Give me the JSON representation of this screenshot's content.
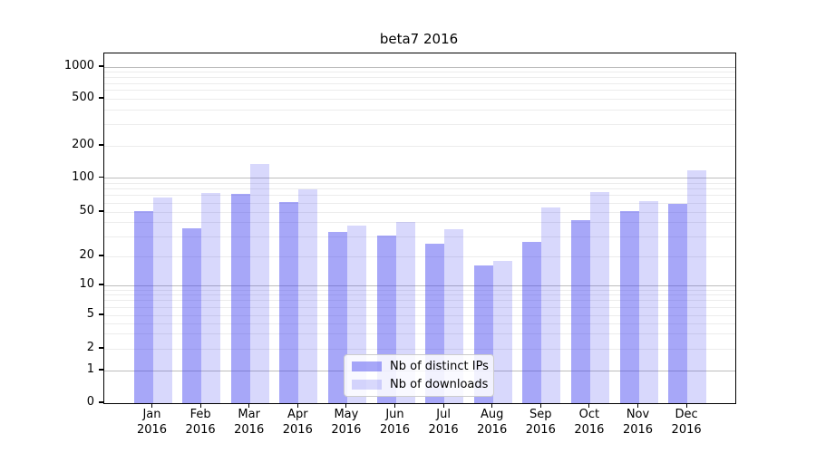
{
  "title": "beta7 2016",
  "chart_data": {
    "type": "bar",
    "title": "beta7 2016",
    "categories": [
      "Jan 2016",
      "Feb 2016",
      "Mar 2016",
      "Apr 2016",
      "May 2016",
      "Jun 2016",
      "Jul 2016",
      "Aug 2016",
      "Sep 2016",
      "Oct 2016",
      "Nov 2016",
      "Dec 2016"
    ],
    "series": [
      {
        "name": "Nb of distinct IPs",
        "color": "#3c3cf0",
        "alpha": 0.45,
        "values": [
          51,
          36,
          73,
          61,
          33,
          31,
          26,
          16,
          27,
          42,
          51,
          59
        ]
      },
      {
        "name": "Nb of downloads",
        "color": "#3c3cf0",
        "alpha": 0.2,
        "values": [
          67,
          74,
          136,
          80,
          38,
          41,
          35,
          18,
          55,
          75,
          63,
          118
        ]
      }
    ],
    "y_axis": {
      "scale": "symlog",
      "tick_values": [
        0,
        1,
        2,
        5,
        10,
        20,
        50,
        100,
        200,
        500,
        1000
      ],
      "tick_labels": [
        "0",
        "1",
        "2",
        "5",
        "10",
        "20",
        "50",
        "100",
        "200",
        "500",
        "1000"
      ]
    },
    "x_axis": {
      "tick_labels_line2": "2016"
    },
    "grid": {
      "horizontal": true,
      "vertical": false
    },
    "legend": {
      "position": "lower-center",
      "labels": [
        "Nb of distinct IPs",
        "Nb of downloads"
      ]
    }
  }
}
